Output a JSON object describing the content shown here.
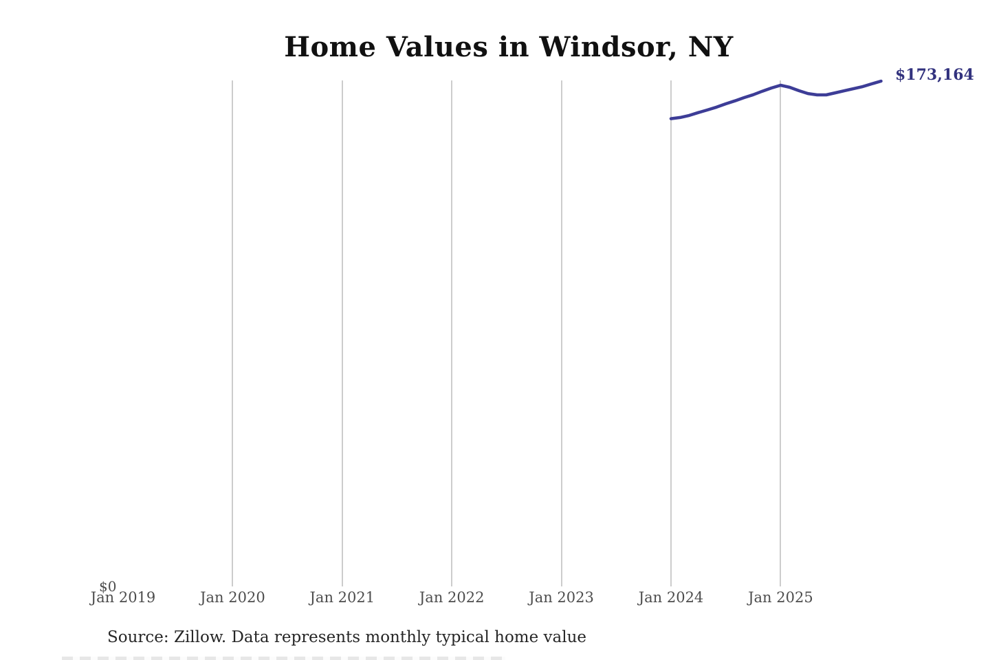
{
  "page": {
    "background": "#ffffff"
  },
  "header": {
    "title": "Home Values in Windsor, NY"
  },
  "chart_data": {
    "type": "line",
    "title": "Home Values in Windsor, NY",
    "x_ticks": [
      "Jan 2019",
      "Jan 2020",
      "Jan 2021",
      "Jan 2022",
      "Jan 2023",
      "Jan 2024",
      "Jan 2025"
    ],
    "x_range": [
      "Jan 2019",
      "Dec 2025"
    ],
    "y_axis": {
      "min": 0,
      "min_label": "$0",
      "max_visible_value": 173164
    },
    "grid": "vertical-gridlines-on, first-tick-gridline-hidden",
    "legend": "none",
    "line_color": "#3d3d97",
    "gridline_color": "#cccccc",
    "end_label": "$173,164",
    "end_label_color": "#32327e",
    "series": [
      {
        "name": "Monthly typical home value",
        "months": [
          "Jan 2024",
          "Feb 2024",
          "Mar 2024",
          "Apr 2024",
          "May 2024",
          "Jun 2024",
          "Jul 2024",
          "Aug 2024",
          "Sep 2024",
          "Oct 2024",
          "Nov 2024",
          "Dec 2024",
          "Jan 2025",
          "Feb 2025",
          "Mar 2025",
          "Apr 2025",
          "May 2025",
          "Jun 2025",
          "Jul 2025",
          "Aug 2025",
          "Sep 2025",
          "Oct 2025",
          "Nov 2025",
          "Dec 2025"
        ],
        "values": [
          160300,
          160700,
          161400,
          162400,
          163300,
          164250,
          165400,
          166400,
          167500,
          168500,
          169700,
          170800,
          171750,
          171050,
          169900,
          168900,
          168450,
          168450,
          169150,
          169900,
          170600,
          171300,
          172250,
          173164
        ]
      }
    ]
  },
  "footer": {
    "source": "Source: Zillow. Data represents monthly typical home value"
  }
}
